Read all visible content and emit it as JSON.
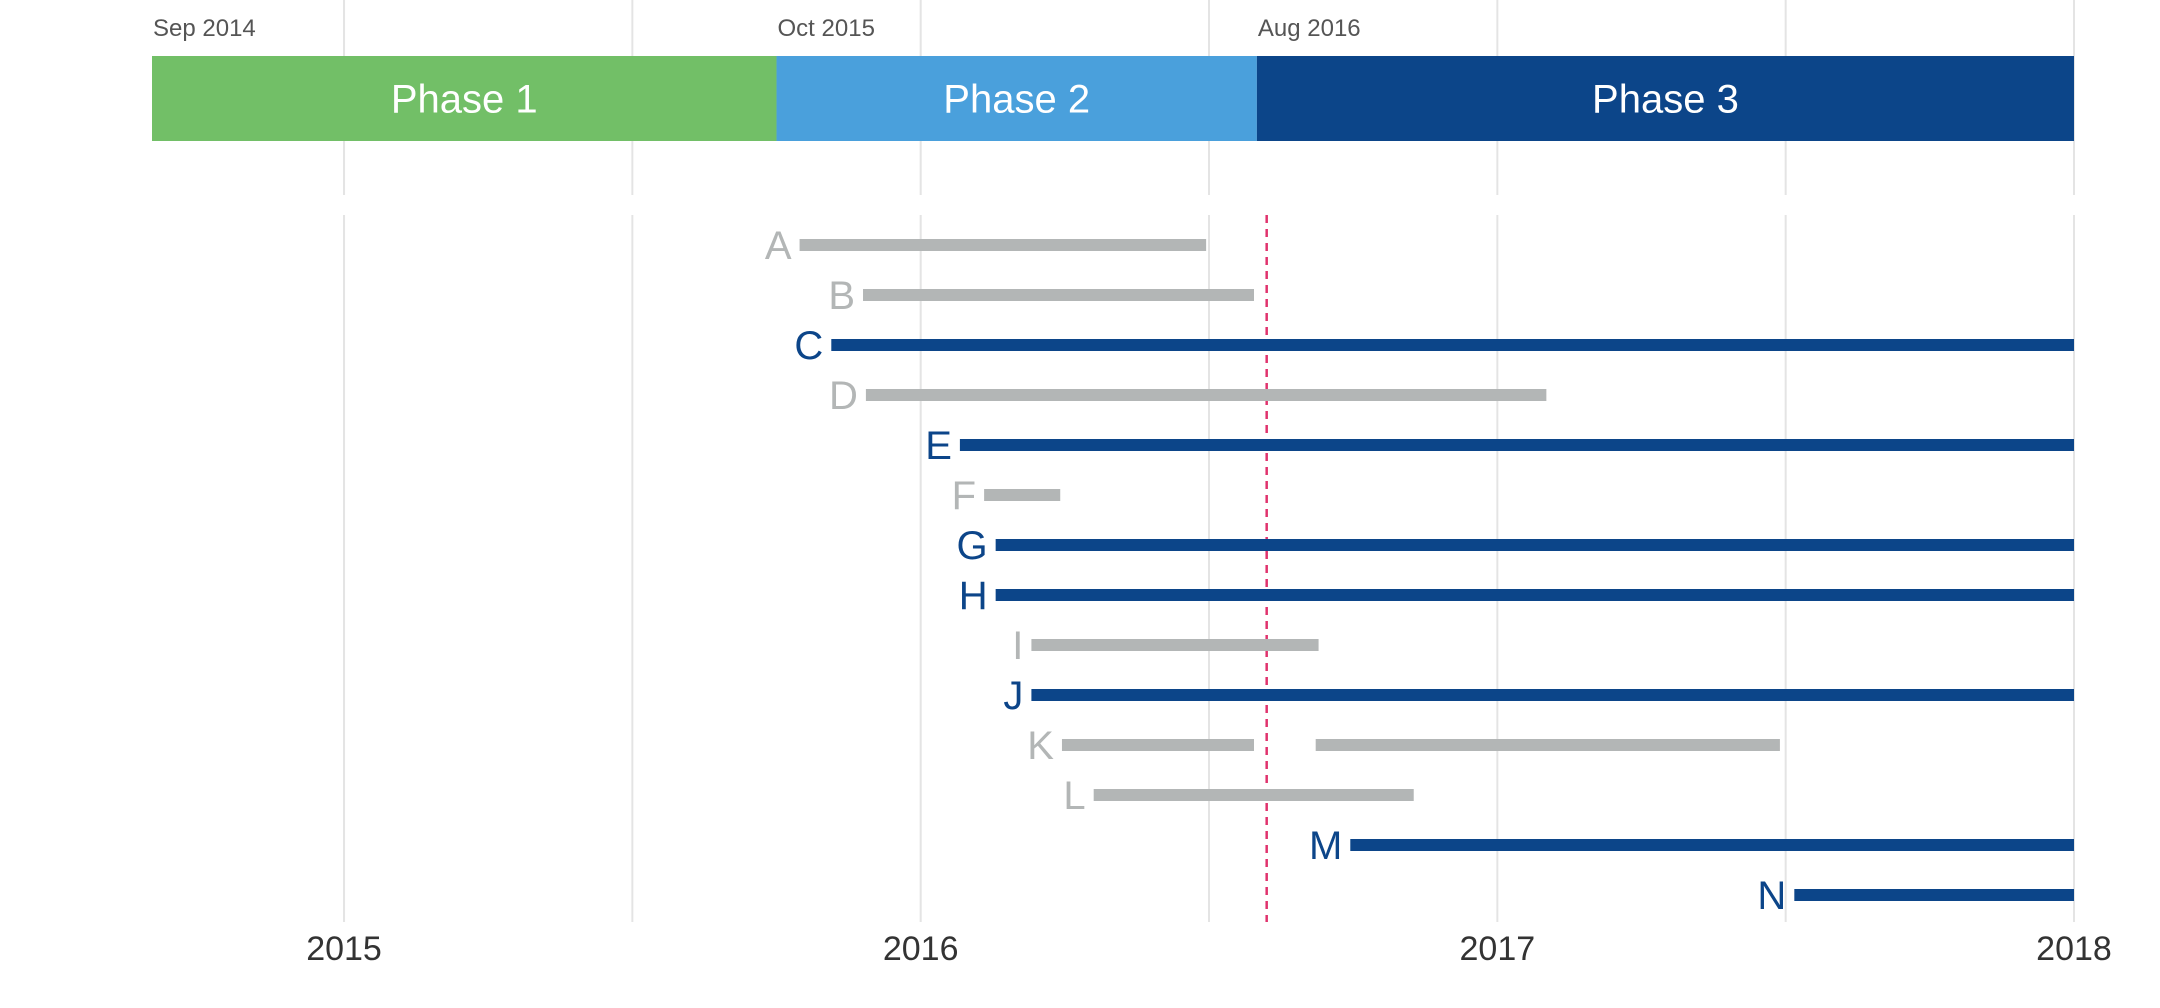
{
  "colors": {
    "active": "#0c4589",
    "inactive": "#b3b6b6",
    "marker": "#e0336d",
    "grid": "#e4e4e4",
    "phase1": "#72bf67",
    "phase2": "#4aa0dc",
    "phase3": "#0c4589"
  },
  "chart_data": {
    "type": "timeline",
    "xlim": [
      2014.667,
      2018.0
    ],
    "x_ticks": [
      {
        "value": 2015,
        "label": "2015"
      },
      {
        "value": 2016,
        "label": "2016"
      },
      {
        "value": 2017,
        "label": "2017"
      },
      {
        "value": 2018,
        "label": "2018"
      }
    ],
    "grid_minor": [
      2015.5,
      2016.5,
      2017.5
    ],
    "grid": true,
    "marker_line": {
      "x": 2016.6,
      "style": "dashed"
    },
    "phases": [
      {
        "label": "Phase 1",
        "start_label": "Sep 2014",
        "start": 2014.667,
        "end": 2015.75,
        "color": "#72bf67"
      },
      {
        "label": "Phase 2",
        "start_label": "Oct 2015",
        "start": 2015.75,
        "end": 2016.583,
        "color": "#4aa0dc"
      },
      {
        "label": "Phase 3",
        "start_label": "Aug 2016",
        "start": 2016.583,
        "end": 2018.0,
        "color": "#0c4589"
      }
    ],
    "rows": [
      {
        "label": "A",
        "active": false,
        "segments": [
          [
            2015.79,
            2016.495
          ]
        ]
      },
      {
        "label": "B",
        "active": false,
        "segments": [
          [
            2015.9,
            2016.578
          ]
        ]
      },
      {
        "label": "C",
        "active": true,
        "segments": [
          [
            2015.845,
            2018.0
          ]
        ]
      },
      {
        "label": "D",
        "active": false,
        "segments": [
          [
            2015.905,
            2017.085
          ]
        ]
      },
      {
        "label": "E",
        "active": true,
        "segments": [
          [
            2016.068,
            2018.0
          ]
        ]
      },
      {
        "label": "F",
        "active": false,
        "segments": [
          [
            2016.11,
            2016.242
          ]
        ]
      },
      {
        "label": "G",
        "active": true,
        "segments": [
          [
            2016.13,
            2018.0
          ]
        ]
      },
      {
        "label": "H",
        "active": true,
        "segments": [
          [
            2016.13,
            2018.0
          ]
        ]
      },
      {
        "label": "I",
        "active": false,
        "segments": [
          [
            2016.192,
            2016.69
          ]
        ]
      },
      {
        "label": "J",
        "active": true,
        "segments": [
          [
            2016.192,
            2018.0
          ]
        ]
      },
      {
        "label": "K",
        "active": false,
        "segments": [
          [
            2016.245,
            2016.578
          ],
          [
            2016.685,
            2017.49
          ]
        ]
      },
      {
        "label": "L",
        "active": false,
        "segments": [
          [
            2016.3,
            2016.855
          ]
        ]
      },
      {
        "label": "M",
        "active": true,
        "segments": [
          [
            2016.745,
            2018.0
          ]
        ]
      },
      {
        "label": "N",
        "active": true,
        "segments": [
          [
            2017.515,
            2018.0
          ]
        ]
      }
    ]
  }
}
